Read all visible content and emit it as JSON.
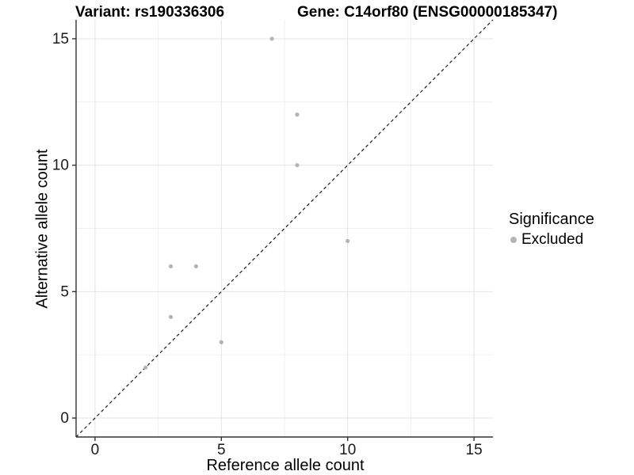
{
  "header": {
    "variant_title": "Variant: rs190336306",
    "gene_title": "Gene: C14orf80 (ENSG00000185347)"
  },
  "legend": {
    "title": "Significance",
    "entries": [
      {
        "label": "Excluded",
        "color": "#b4b4b4",
        "marker": "circle-icon"
      }
    ]
  },
  "chart_data": {
    "type": "scatter",
    "xlabel": "Reference allele count",
    "ylabel": "Alternative allele count",
    "xlim": [
      -0.75,
      15.75
    ],
    "ylim": [
      -0.75,
      15.75
    ],
    "xticks": [
      0,
      5,
      10,
      15
    ],
    "yticks": [
      0,
      5,
      10,
      15
    ],
    "xminor": [
      2.5,
      7.5,
      12.5
    ],
    "yminor": [
      2.5,
      7.5,
      12.5
    ],
    "grid": true,
    "legend_position": "right",
    "series": [
      {
        "name": "Excluded",
        "color": "#b4b4b4",
        "marker_radius": 2.6,
        "points": [
          [
            2,
            2
          ],
          [
            3,
            4
          ],
          [
            3,
            6
          ],
          [
            4,
            6
          ],
          [
            5,
            3
          ],
          [
            7,
            15
          ],
          [
            8,
            10
          ],
          [
            8,
            12
          ],
          [
            10,
            7
          ]
        ]
      }
    ],
    "reference_line": {
      "type": "identity y = x",
      "style": "dashed",
      "color": "#1a1a1a"
    },
    "colors": {
      "grid_major": "#e4e4e4",
      "grid_minor": "#f0f0f0",
      "axis_line": "#333333",
      "tick_label": "#1a1a1a"
    },
    "tick_label_size": 19
  }
}
